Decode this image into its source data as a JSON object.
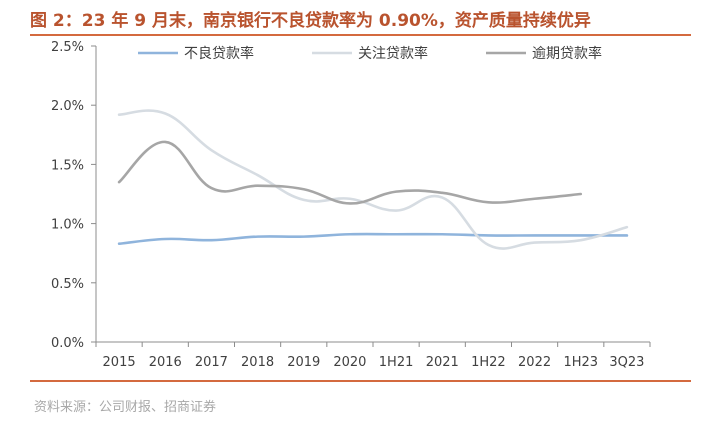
{
  "header": {
    "title": "图 2：23 年 9 月末，南京银行不良贷款率为 0.90%，资产质量持续优异"
  },
  "footer": {
    "source": "资料来源：公司财报、招商证券"
  },
  "colors": {
    "accent": "#d46a3f",
    "title": "#b9532e"
  },
  "chart_data": {
    "type": "line",
    "categories": [
      "2015",
      "2016",
      "2017",
      "2018",
      "2019",
      "2020",
      "1H21",
      "2021",
      "1H22",
      "2022",
      "1H23",
      "3Q23"
    ],
    "y_ticks": [
      "0.0%",
      "0.5%",
      "1.0%",
      "1.5%",
      "2.0%",
      "2.5%"
    ],
    "ylim": [
      0,
      2.5
    ],
    "legend_position": "top",
    "grid": false,
    "series": [
      {
        "name": "不良贷款率",
        "color": "#8fb4dc",
        "values": [
          0.83,
          0.87,
          0.86,
          0.89,
          0.89,
          0.91,
          0.91,
          0.91,
          0.9,
          0.9,
          0.9,
          0.9
        ]
      },
      {
        "name": "关注贷款率",
        "color": "#d6dce2",
        "values": [
          1.92,
          1.93,
          1.62,
          1.41,
          1.2,
          1.21,
          1.11,
          1.22,
          0.82,
          0.84,
          0.86,
          0.97
        ]
      },
      {
        "name": "逾期贷款率",
        "color": "#a6a6a6",
        "values": [
          1.35,
          1.69,
          1.3,
          1.32,
          1.29,
          1.17,
          1.27,
          1.26,
          1.18,
          1.21,
          1.25,
          null
        ]
      }
    ]
  }
}
